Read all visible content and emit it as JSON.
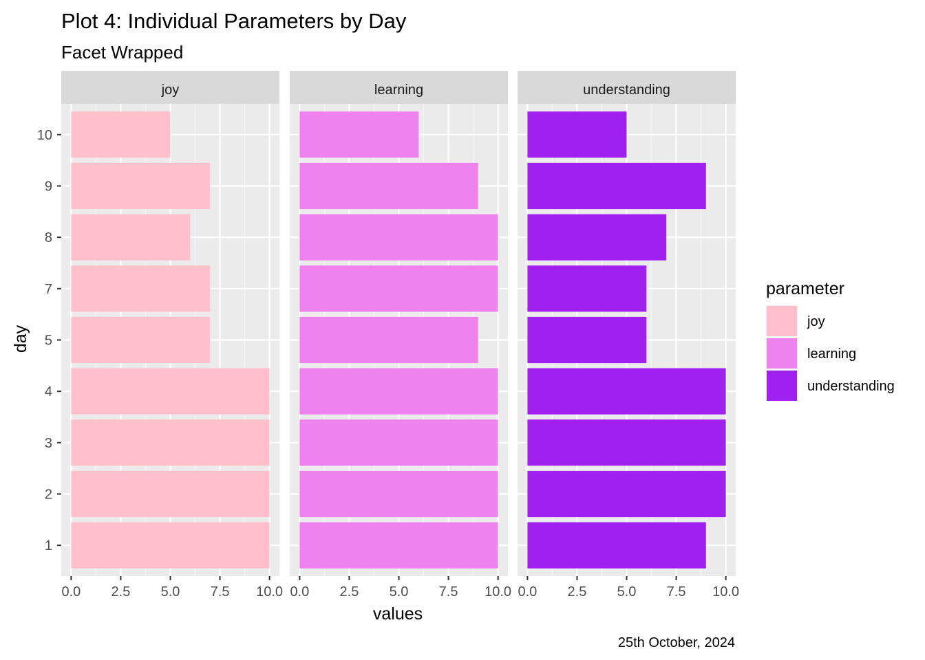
{
  "chart_data": {
    "type": "bar",
    "orientation": "horizontal",
    "title": "Plot 4:  Individual Parameters by Day",
    "subtitle": "Facet Wrapped",
    "xlabel": "values",
    "ylabel": "day",
    "caption": "25th October, 2024",
    "categories": [
      "1",
      "2",
      "3",
      "4",
      "5",
      "7",
      "8",
      "9",
      "10"
    ],
    "xlim": [
      0,
      10
    ],
    "x_ticks": [
      0,
      2.5,
      5,
      7.5,
      10
    ],
    "x_tick_labels": [
      "0.0",
      "2.5",
      "5.0",
      "7.5",
      "10.0"
    ],
    "grid": true,
    "legend_position": "right",
    "legend_title": "parameter",
    "series": [
      {
        "name": "joy",
        "color": "#FFC0CB",
        "values": [
          10,
          10,
          10,
          10,
          7,
          7,
          6,
          7,
          5
        ]
      },
      {
        "name": "learning",
        "color": "#EE82EE",
        "values": [
          10,
          10,
          10,
          10,
          9,
          10,
          10,
          9,
          6
        ]
      },
      {
        "name": "understanding",
        "color": "#A020F0",
        "values": [
          9,
          10,
          10,
          10,
          6,
          6,
          7,
          9,
          5
        ]
      }
    ],
    "colors": {
      "panel_background": "#EBEBEB",
      "grid_major": "#FFFFFF",
      "strip_background": "#D9D9D9"
    }
  }
}
